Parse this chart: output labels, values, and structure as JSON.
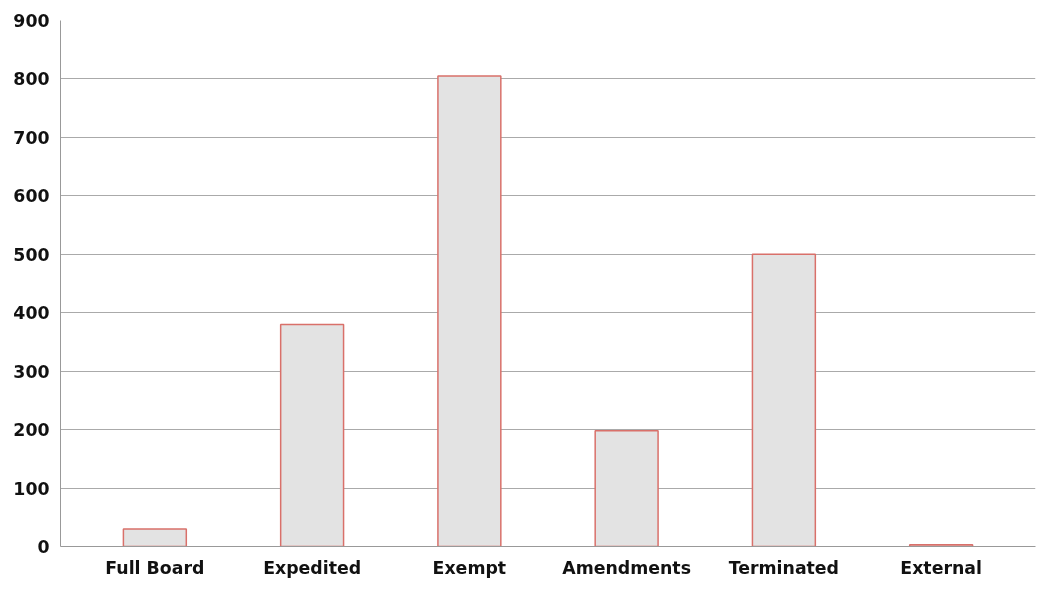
{
  "chart_data": {
    "type": "bar",
    "categories": [
      "Full Board",
      "Expedited",
      "Exempt",
      "Amendments",
      "Terminated",
      "External"
    ],
    "values": [
      30,
      380,
      805,
      198,
      500,
      3
    ],
    "color": "#e3e3e3",
    "ylim": [
      0,
      900
    ],
    "yticks": [
      0,
      100,
      200,
      300,
      400,
      500,
      600,
      700,
      800,
      900
    ],
    "grid": "y"
  }
}
